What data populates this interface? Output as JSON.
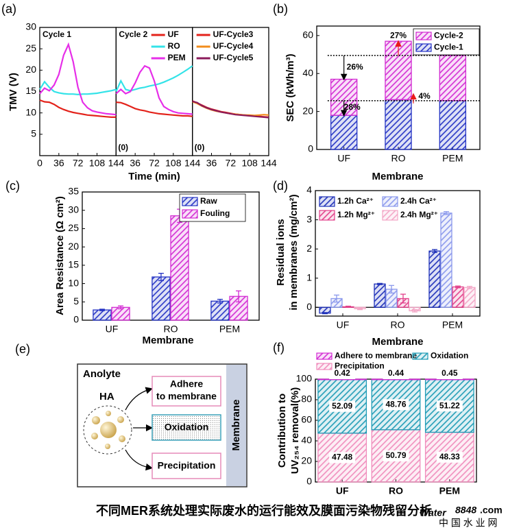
{
  "chart_data": [
    {
      "type": "line",
      "label": "(a)",
      "xlabel": "Time (min)",
      "ylabel": "TMV (V)",
      "x": [
        0,
        9,
        18,
        27,
        36,
        45,
        54,
        63,
        72,
        81,
        90,
        99,
        108,
        117,
        126,
        135,
        144
      ],
      "xlim": [
        0,
        144
      ],
      "xticks": [
        0,
        36,
        72,
        108,
        144
      ],
      "ylim": [
        0,
        30
      ],
      "yticks": [
        5,
        10,
        15,
        20,
        25,
        30
      ],
      "cycle_labels": [
        "Cycle 1",
        "Cycle 2"
      ],
      "origin_labels": [
        "(0)",
        "(0)"
      ],
      "series": [
        {
          "panel": 0,
          "color": "#e3231b",
          "values": [
            13,
            12.6,
            12.5,
            12,
            11.3,
            10.8,
            10.4,
            10.1,
            9.9,
            9.7,
            9.5,
            9.4,
            9.3,
            9.2,
            9.1,
            9,
            9
          ]
        },
        {
          "panel": 0,
          "color": "#33e3e8",
          "values": [
            15.5,
            17.3,
            16,
            15,
            14.7,
            14.5,
            14.4,
            14.4,
            14.3,
            14.4,
            14.4,
            14.5,
            14.6,
            14.8,
            15,
            15.2,
            15.5
          ]
        },
        {
          "panel": 0,
          "color": "#e62ee8",
          "values": [
            14.5,
            15.8,
            15.2,
            16.5,
            19,
            23.5,
            26,
            22,
            16,
            12.5,
            11.2,
            10.5,
            10.2,
            10,
            9.8,
            9.7,
            9.6
          ]
        },
        {
          "panel": 1,
          "name": "UF",
          "color": "#e3231b",
          "values": [
            12.5,
            12.4,
            12,
            11.5,
            11,
            10.7,
            10.5,
            10.2,
            10,
            9.8,
            9.7,
            9.6,
            9.5,
            9.4,
            9.3,
            9.3,
            9.2
          ]
        },
        {
          "panel": 1,
          "name": "RO",
          "color": "#33e3e8",
          "values": [
            15,
            17.5,
            15.5,
            15.2,
            15.5,
            15.8,
            16,
            16.3,
            16.5,
            16.8,
            17.2,
            17.7,
            18.2,
            18.8,
            19.5,
            20.2,
            21
          ]
        },
        {
          "panel": 1,
          "name": "PEM",
          "color": "#e62ee8",
          "values": [
            14.5,
            15.5,
            14.5,
            15,
            17,
            19.5,
            21,
            20.5,
            17.5,
            13.5,
            11.5,
            10.8,
            10.3,
            10,
            9.9,
            9.8,
            9.7
          ]
        },
        {
          "panel": 2,
          "name": "UF-Cycle3",
          "color": "#e3231b",
          "values": [
            12.8,
            12.3,
            11.8,
            11.3,
            10.9,
            10.6,
            10.3,
            10.1,
            9.9,
            9.7,
            9.6,
            9.5,
            9.4,
            9.3,
            9.2,
            9.1,
            9
          ]
        },
        {
          "panel": 2,
          "name": "UF-Cycle4",
          "color": "#f28c1c",
          "values": [
            12.6,
            12.2,
            11.6,
            11.1,
            10.7,
            10.4,
            10.2,
            10,
            9.8,
            9.7,
            9.6,
            9.5,
            9.5,
            9.4,
            9.5,
            9.6,
            9.5
          ]
        },
        {
          "panel": 2,
          "name": "UF-Cycle5",
          "color": "#8b1a5a",
          "values": [
            12.7,
            12.4,
            11.7,
            11.2,
            10.8,
            10.5,
            10.2,
            10,
            9.8,
            9.6,
            9.5,
            9.4,
            9.3,
            9.2,
            9.1,
            9,
            8.9
          ]
        }
      ]
    },
    {
      "type": "stacked_bar",
      "label": "(b)",
      "xlabel": "Membrane",
      "ylabel": "SEC (kWh/m³)",
      "categories": [
        "UF",
        "RO",
        "PEM"
      ],
      "ylim": [
        0,
        65
      ],
      "yticks": [
        0,
        20,
        40,
        60
      ],
      "series": [
        {
          "name": "Cycle-1",
          "color": "#2433c4",
          "values": [
            18,
            26.2,
            25.7
          ]
        },
        {
          "name": "Cycle-2",
          "color": "#d22ad2",
          "values": [
            19,
            30.8,
            23.8
          ]
        }
      ],
      "annotations": [
        {
          "text": "26%",
          "color": "#000000"
        },
        {
          "text": "28%",
          "color": "#000000"
        },
        {
          "text": "27%",
          "color": "#e81b1b"
        },
        {
          "text": "4%",
          "color": "#e81b1b"
        }
      ]
    },
    {
      "type": "grouped_bar",
      "label": "(c)",
      "xlabel": "Membrane",
      "ylabel": "Area Resistance (Ω cm²)",
      "categories": [
        "UF",
        "RO",
        "PEM"
      ],
      "ylim": [
        0,
        35
      ],
      "yticks": [
        0,
        5,
        10,
        15,
        20,
        25,
        30,
        35
      ],
      "series": [
        {
          "name": "Raw",
          "color": "#2433c4",
          "values": [
            2.8,
            11.8,
            5.2
          ],
          "errors": [
            0.2,
            1,
            0.5
          ]
        },
        {
          "name": "Fouling",
          "color": "#d22ad2",
          "values": [
            3.5,
            28.5,
            6.5
          ],
          "errors": [
            0.4,
            1.8,
            1.5
          ]
        }
      ]
    },
    {
      "type": "grouped_bar",
      "label": "(d)",
      "xlabel": "Membrane",
      "ylabel": [
        "Residual ions",
        "in membranes (mg/cm²)"
      ],
      "categories": [
        "UF",
        "RO",
        "PEM"
      ],
      "ylim": [
        -0.3,
        4
      ],
      "yticks": [
        0,
        1,
        2,
        3,
        4
      ],
      "series": [
        {
          "name": "1.2h Ca²⁺",
          "color": "#1d2fb8",
          "values": [
            -0.2,
            0.8,
            1.93
          ],
          "errors": [
            0.02,
            0.02,
            0.05
          ]
        },
        {
          "name": "2.4h Ca²⁺",
          "color": "#8a98ec",
          "values": [
            0.3,
            0.62,
            3.23
          ],
          "errors": [
            0.12,
            0.13,
            0.05
          ]
        },
        {
          "name": "1.2h Mg²⁺",
          "color": "#e2408a",
          "values": [
            0.02,
            0.3,
            0.7
          ],
          "errors": [
            0.02,
            0.15,
            0.03
          ]
        },
        {
          "name": "2.4h Mg²⁺",
          "color": "#f3a6c6",
          "values": [
            -0.05,
            -0.12,
            0.68
          ],
          "errors": [
            0.03,
            0.04,
            0.04
          ]
        }
      ]
    },
    {
      "type": "stacked_bar",
      "label": "(f)",
      "ylabel": [
        "Contribution to",
        "UV₂₅₄ removal(%)"
      ],
      "categories": [
        "UF",
        "RO",
        "PEM"
      ],
      "ylim": [
        0,
        100
      ],
      "yticks": [
        0,
        20,
        40,
        60,
        80,
        100
      ],
      "data_labels": true,
      "series": [
        {
          "name": "Precipitation",
          "color": "#f08cbc",
          "values": [
            47.48,
            50.79,
            48.33
          ]
        },
        {
          "name": "Oxidation",
          "color": "#1e9bb5",
          "values": [
            52.09,
            48.76,
            51.22
          ]
        },
        {
          "name": "Adhere to membrane",
          "color": "#d22ad2",
          "values": [
            0.42,
            0.44,
            0.45
          ]
        }
      ]
    }
  ],
  "diagram": {
    "label": "(e)",
    "title": "Anolyte",
    "source": "HA",
    "targets": [
      [
        "Adhere",
        "to membrane"
      ],
      [
        "Oxidation"
      ],
      [
        "Precipitation"
      ]
    ],
    "wall": "Membrane"
  },
  "footer": {
    "caption": "不同MER系统处理实际废水的运行能效及膜面污染物残留分析",
    "watermark": {
      "brand": "Water",
      "number": "8848",
      "domain": ".com",
      "subtitle": "中 国 水 业 网"
    }
  }
}
